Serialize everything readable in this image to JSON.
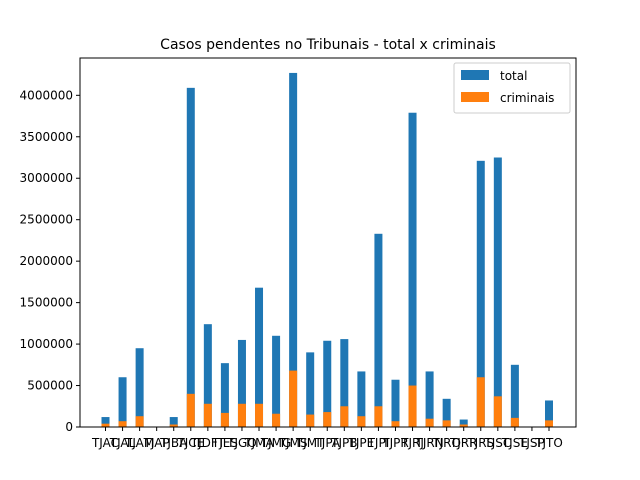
{
  "chart_data": {
    "type": "bar",
    "title": "Casos pendentes no Tribunais - total x criminais",
    "xlabel": "",
    "ylabel": "",
    "categories": [
      "TJAC",
      "TJAL",
      "TJAM",
      "TJAP",
      "TJBA",
      "TJCE",
      "TJDFT",
      "TJES",
      "TJGO",
      "TJMA",
      "TJMG",
      "TJMS",
      "TJMT",
      "TJPA",
      "TJPB",
      "TJPE",
      "TJPI",
      "TJPR",
      "TJRJ",
      "TJRN",
      "TJRO",
      "TJRR",
      "TJRS",
      "TJSC",
      "TJSE",
      "TJSP",
      "TJTO"
    ],
    "series": [
      {
        "name": "total",
        "color": "#1f77b4",
        "values": [
          120000,
          600000,
          950000,
          0,
          120000,
          4090000,
          1240000,
          770000,
          1050000,
          1680000,
          1100000,
          4270000,
          900000,
          1040000,
          1060000,
          670000,
          2330000,
          570000,
          3790000,
          670000,
          340000,
          90000,
          3210000,
          3250000,
          750000,
          0,
          320000
        ]
      },
      {
        "name": "criminais",
        "color": "#ff7f0e",
        "values": [
          40000,
          70000,
          130000,
          0,
          30000,
          400000,
          280000,
          170000,
          280000,
          280000,
          160000,
          680000,
          150000,
          180000,
          250000,
          130000,
          250000,
          70000,
          500000,
          100000,
          80000,
          30000,
          600000,
          370000,
          110000,
          0,
          80000
        ]
      }
    ],
    "ylim": [
      0,
      4450000
    ],
    "yticks": [
      0,
      500000,
      1000000,
      1500000,
      2000000,
      2500000,
      3000000,
      3500000,
      4000000
    ],
    "ytick_labels": [
      "0",
      "500000",
      "1000000",
      "1500000",
      "2000000",
      "2500000",
      "3000000",
      "3500000",
      "4000000"
    ],
    "grid": false,
    "legend_position": "top-right"
  }
}
